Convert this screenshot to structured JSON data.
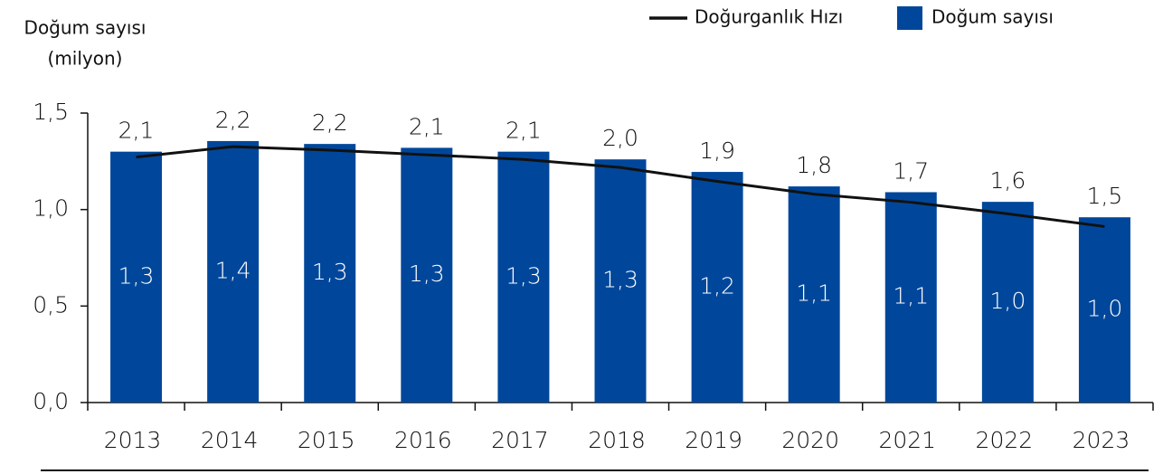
{
  "chart_data": {
    "type": "bar",
    "ylabel": [
      "Doğum sayısı",
      "(milyon)"
    ],
    "categories": [
      "2013",
      "2014",
      "2015",
      "2016",
      "2017",
      "2018",
      "2019",
      "2020",
      "2021",
      "2022",
      "2023"
    ],
    "series": [
      {
        "name": "Doğum sayısı",
        "type": "bar",
        "color": "#00479b",
        "values": [
          1.3,
          1.355,
          1.34,
          1.32,
          1.3,
          1.26,
          1.195,
          1.12,
          1.09,
          1.04,
          0.96
        ],
        "value_labels": [
          "1,3",
          "1,4",
          "1,3",
          "1,3",
          "1,3",
          "1,3",
          "1,2",
          "1,1",
          "1,1",
          "1,0",
          "1,0"
        ]
      },
      {
        "name": "Doğurganlık Hızı",
        "type": "line",
        "axis": "y2",
        "color": "#111111",
        "values": [
          2.12,
          2.21,
          2.18,
          2.14,
          2.1,
          2.03,
          1.91,
          1.8,
          1.73,
          1.63,
          1.52
        ],
        "value_labels": [
          "2,1",
          "2,2",
          "2,2",
          "2,1",
          "2,1",
          "2,0",
          "1,9",
          "1,8",
          "1,7",
          "1,6",
          "1,5"
        ]
      }
    ],
    "ylim": [
      0,
      1.5
    ],
    "yticks": [
      {
        "value": 0,
        "label": "0,0"
      },
      {
        "value": 0.5,
        "label": "0,5"
      },
      {
        "value": 1,
        "label": "1,0"
      },
      {
        "value": 1.5,
        "label": "1,5"
      }
    ],
    "y2lim": [
      0,
      2.5
    ],
    "legend": "top-right"
  }
}
